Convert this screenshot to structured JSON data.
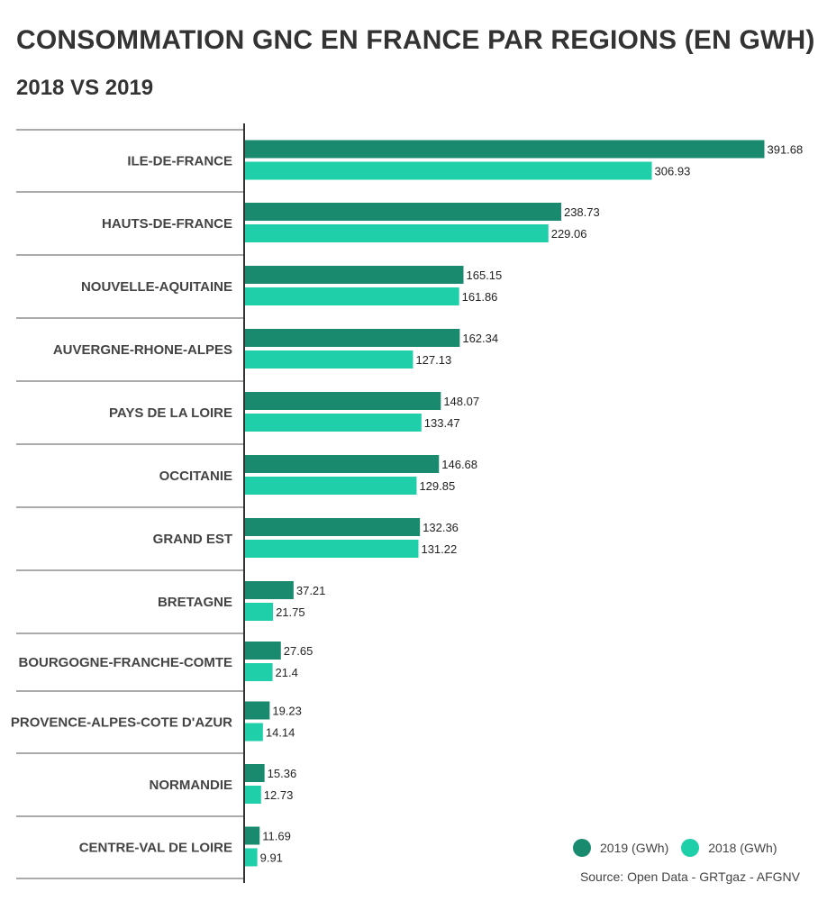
{
  "colors": {
    "series_2019": "#1a8a6e",
    "series_2018": "#1ecfa9",
    "axis": "#333333",
    "separator": "#555555"
  },
  "chart_data": {
    "type": "bar",
    "orientation": "horizontal",
    "title": "CONSOMMATION GNC EN FRANCE PAR REGIONS (EN GWH)",
    "subtitle": "2018 VS 2019",
    "categories": [
      "ILE-DE-FRANCE",
      "HAUTS-DE-FRANCE",
      "NOUVELLE-AQUITAINE",
      "AUVERGNE-RHONE-ALPES",
      "PAYS DE LA LOIRE",
      "OCCITANIE",
      "GRAND EST",
      "BRETAGNE",
      "BOURGOGNE-FRANCHE-COMTE",
      "PROVENCE-ALPES-COTE D'AZUR",
      "NORMANDIE",
      "CENTRE-VAL DE LOIRE"
    ],
    "series": [
      {
        "name": "2019 (GWh)",
        "values": [
          391.68,
          238.73,
          165.15,
          162.34,
          148.07,
          146.68,
          132.36,
          37.21,
          27.65,
          19.23,
          15.36,
          11.69
        ]
      },
      {
        "name": "2018 (GWh)",
        "values": [
          306.93,
          229.06,
          161.86,
          127.13,
          133.47,
          129.85,
          131.22,
          21.75,
          21.4,
          14.14,
          12.73,
          9.91
        ]
      }
    ],
    "value_labels": [
      [
        "391.68",
        "238.73",
        "165.15",
        "162.34",
        "148.07",
        "146.68",
        "132.36",
        "37.21",
        "27.65",
        "19.23",
        "15.36",
        "11.69"
      ],
      [
        "306.93",
        "229.06",
        "161.86",
        "127.13",
        "133.47",
        "129.85",
        "131.22",
        "21.75",
        "21.4",
        "14.14",
        "12.73",
        "9.91"
      ]
    ],
    "xlim": [
      0,
      400
    ],
    "legend_position": "bottom-right",
    "grid": false
  },
  "legend": {
    "items": [
      {
        "label": "2019 (GWh)"
      },
      {
        "label": "2018 (GWh)"
      }
    ]
  },
  "source": "Source: Open Data - GRTgaz - AFGNV"
}
